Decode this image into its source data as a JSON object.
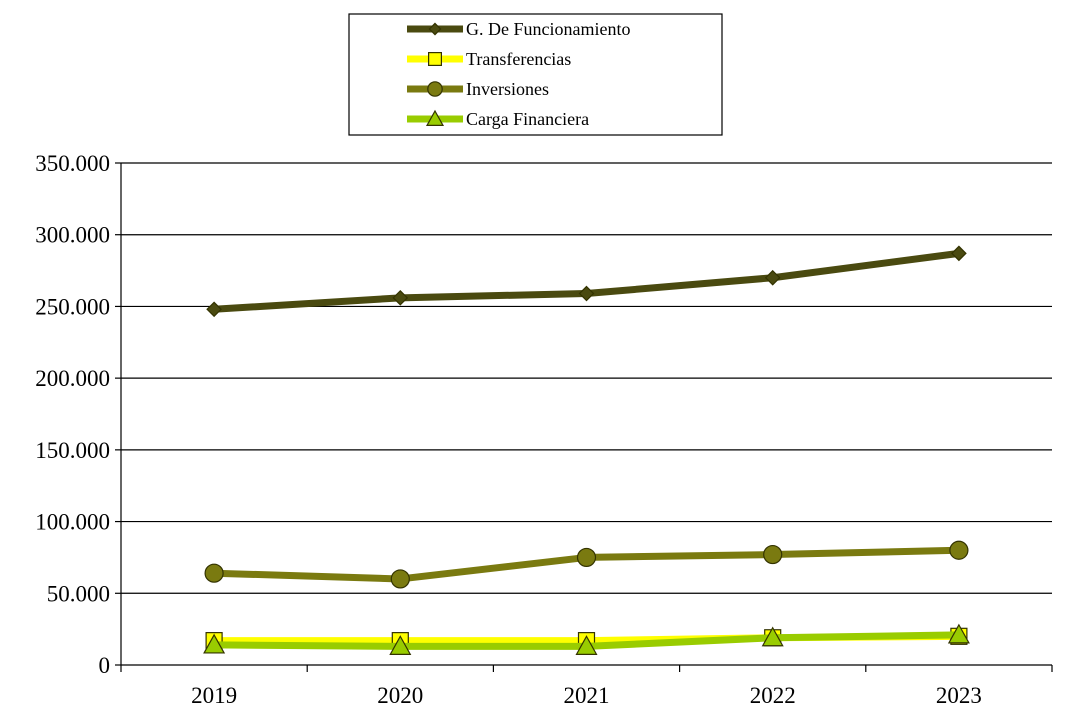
{
  "chart_data": {
    "type": "line",
    "title": "",
    "xlabel": "",
    "ylabel": "",
    "categories": [
      "2019",
      "2020",
      "2021",
      "2022",
      "2023"
    ],
    "ylim": [
      0,
      350000
    ],
    "yticks": [
      {
        "value": 0,
        "label": "0"
      },
      {
        "value": 50000,
        "label": "50.000"
      },
      {
        "value": 100000,
        "label": "100.000"
      },
      {
        "value": 150000,
        "label": "150.000"
      },
      {
        "value": 200000,
        "label": "200.000"
      },
      {
        "value": 250000,
        "label": "250.000"
      },
      {
        "value": 300000,
        "label": "300.000"
      },
      {
        "value": 350000,
        "label": "350.000"
      }
    ],
    "grid": true,
    "legend_position": "top-center",
    "series": [
      {
        "name": "G. De Funcionamiento",
        "color": "#4a4a10",
        "marker": "diamond",
        "values": [
          248000,
          256000,
          259000,
          270000,
          287000
        ]
      },
      {
        "name": "Transferencias",
        "color": "#ffff00",
        "marker": "square",
        "values": [
          17000,
          17000,
          17000,
          19000,
          20000
        ]
      },
      {
        "name": "Inversiones",
        "color": "#7a7a10",
        "marker": "circle",
        "values": [
          64000,
          60000,
          75000,
          77000,
          80000
        ]
      },
      {
        "name": "Carga Financiera",
        "color": "#99cc00",
        "marker": "triangle",
        "values": [
          14000,
          13000,
          13000,
          19000,
          21000
        ]
      }
    ]
  }
}
